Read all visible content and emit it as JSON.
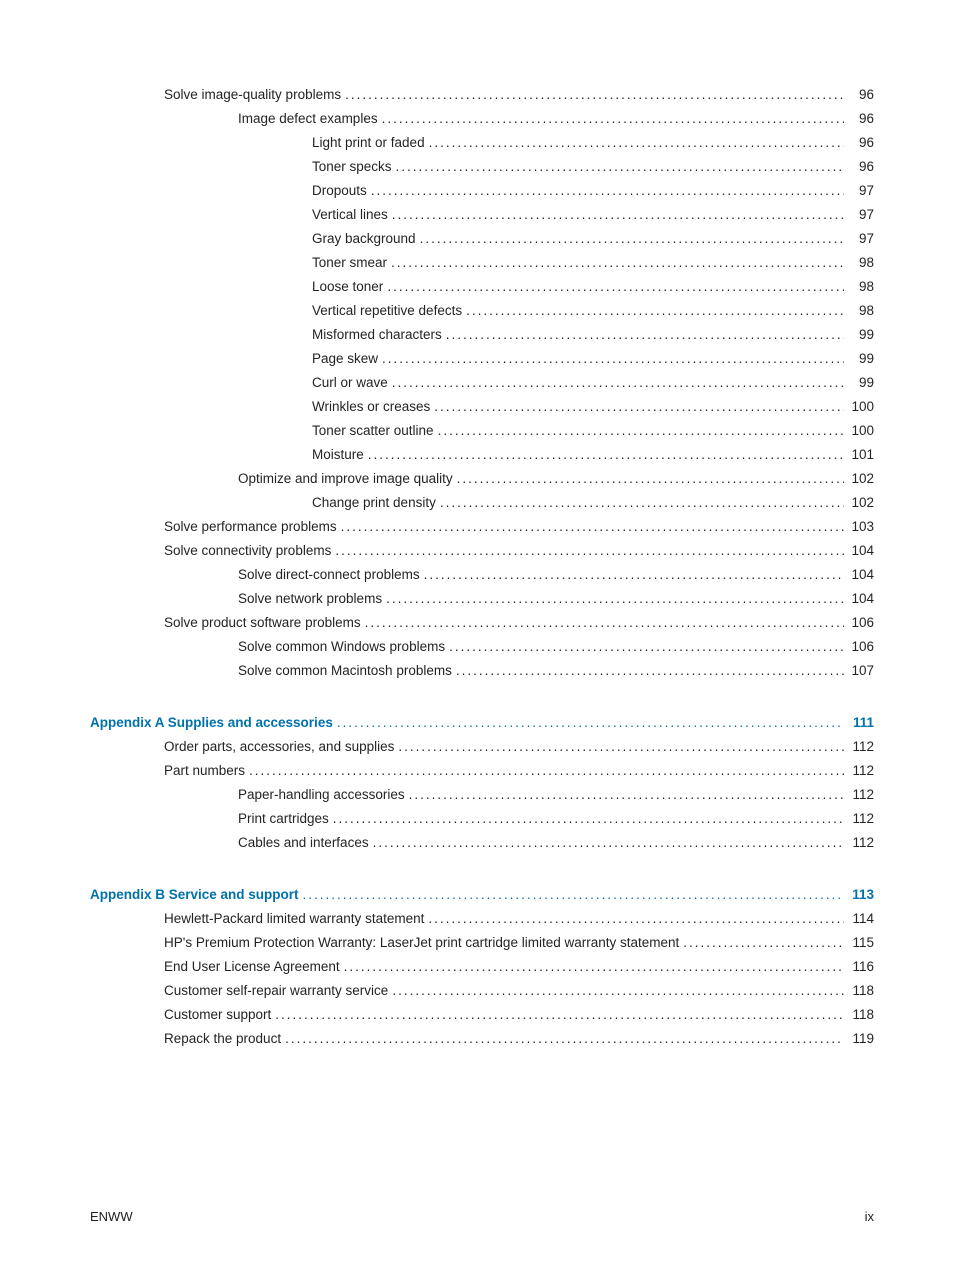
{
  "text_color": "#242424",
  "heading_color": "#0071ad",
  "background_color": "#ffffff",
  "font_size_pt": 10,
  "entries": [
    {
      "level": 1,
      "label": "Solve image-quality problems",
      "page": "96",
      "heading": false
    },
    {
      "level": 2,
      "label": "Image defect examples",
      "page": "96",
      "heading": false
    },
    {
      "level": 3,
      "label": "Light print or faded",
      "page": "96",
      "heading": false
    },
    {
      "level": 3,
      "label": "Toner specks",
      "page": "96",
      "heading": false
    },
    {
      "level": 3,
      "label": "Dropouts",
      "page": "97",
      "heading": false
    },
    {
      "level": 3,
      "label": "Vertical lines",
      "page": "97",
      "heading": false
    },
    {
      "level": 3,
      "label": "Gray background",
      "page": "97",
      "heading": false
    },
    {
      "level": 3,
      "label": "Toner smear",
      "page": "98",
      "heading": false
    },
    {
      "level": 3,
      "label": "Loose toner",
      "page": "98",
      "heading": false
    },
    {
      "level": 3,
      "label": "Vertical repetitive defects",
      "page": "98",
      "heading": false
    },
    {
      "level": 3,
      "label": "Misformed characters",
      "page": "99",
      "heading": false
    },
    {
      "level": 3,
      "label": "Page skew",
      "page": "99",
      "heading": false
    },
    {
      "level": 3,
      "label": "Curl or wave",
      "page": "99",
      "heading": false
    },
    {
      "level": 3,
      "label": "Wrinkles or creases",
      "page": "100",
      "heading": false
    },
    {
      "level": 3,
      "label": "Toner scatter outline",
      "page": "100",
      "heading": false
    },
    {
      "level": 3,
      "label": "Moisture",
      "page": "101",
      "heading": false
    },
    {
      "level": 2,
      "label": "Optimize and improve image quality",
      "page": "102",
      "heading": false
    },
    {
      "level": 3,
      "label": "Change print density",
      "page": "102",
      "heading": false
    },
    {
      "level": 1,
      "label": "Solve performance problems",
      "page": "103",
      "heading": false
    },
    {
      "level": 1,
      "label": "Solve connectivity problems",
      "page": "104",
      "heading": false
    },
    {
      "level": 2,
      "label": "Solve direct-connect problems",
      "page": "104",
      "heading": false
    },
    {
      "level": 2,
      "label": "Solve network problems",
      "page": "104",
      "heading": false
    },
    {
      "level": 1,
      "label": "Solve product software problems",
      "page": "106",
      "heading": false
    },
    {
      "level": 2,
      "label": "Solve common Windows problems ",
      "page": "106",
      "heading": false
    },
    {
      "level": 2,
      "label": "Solve common Macintosh problems",
      "page": "107",
      "heading": false
    },
    {
      "gap": true
    },
    {
      "level": 0,
      "label": "Appendix A  Supplies and accessories",
      "page": "111",
      "heading": true
    },
    {
      "level": 1,
      "label": "Order parts, accessories, and supplies",
      "page": "112",
      "heading": false
    },
    {
      "level": 1,
      "label": "Part numbers",
      "page": "112",
      "heading": false
    },
    {
      "level": 2,
      "label": "Paper-handling accessories",
      "page": "112",
      "heading": false
    },
    {
      "level": 2,
      "label": "Print cartridges",
      "page": "112",
      "heading": false
    },
    {
      "level": 2,
      "label": "Cables and interfaces",
      "page": "112",
      "heading": false
    },
    {
      "gap": true
    },
    {
      "level": 0,
      "label": "Appendix B  Service and support",
      "page": "113",
      "heading": true
    },
    {
      "level": 1,
      "label": "Hewlett-Packard limited warranty statement",
      "page": "114",
      "heading": false
    },
    {
      "level": 1,
      "label": "HP's Premium Protection Warranty: LaserJet print cartridge limited warranty statement",
      "page": "115",
      "heading": false
    },
    {
      "level": 1,
      "label": "End User License Agreement",
      "page": "116",
      "heading": false
    },
    {
      "level": 1,
      "label": "Customer self-repair warranty service",
      "page": "118",
      "heading": false
    },
    {
      "level": 1,
      "label": "Customer support",
      "page": "118",
      "heading": false
    },
    {
      "level": 1,
      "label": "Repack the product",
      "page": "119",
      "heading": false
    }
  ],
  "footer": {
    "left": "ENWW",
    "right": "ix"
  }
}
